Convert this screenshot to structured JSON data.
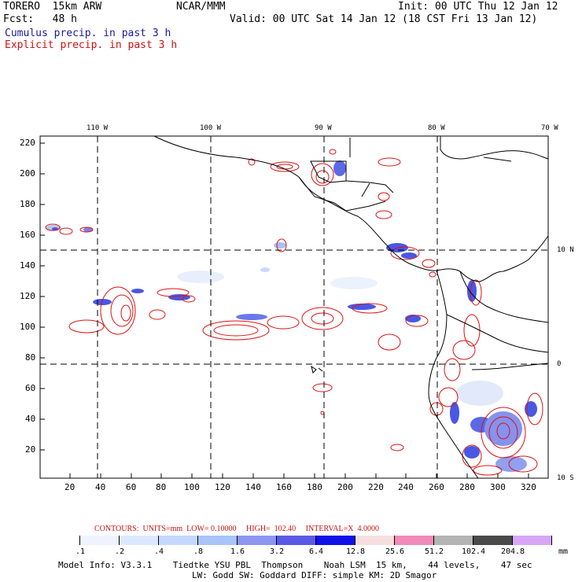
{
  "header": {
    "model": "TORERO  15km ARW",
    "org": "NCAR/MMM",
    "init": "Init: 00 UTC Thu 12 Jan 12",
    "fcst": "Fcst:   48 h",
    "valid": "Valid: 00 UTC Sat 14 Jan 12 (18 CST Fri 13 Jan 12)",
    "legend_cumulus": "Cumulus precip. in past 3 h",
    "legend_explicit": "Explicit precip. in past 3 h"
  },
  "map": {
    "top_labels": [
      "110 W",
      "100 W",
      "90 W",
      "80 W",
      "70 W"
    ],
    "right_labels": [
      "10 N",
      "0",
      "10 S"
    ],
    "y_ticks": [
      "220",
      "200",
      "180",
      "160",
      "140",
      "120",
      "100",
      "80",
      "60",
      "40",
      "20"
    ],
    "x_ticks": [
      "20",
      "40",
      "60",
      "80",
      "100",
      "120",
      "140",
      "160",
      "180",
      "200",
      "220",
      "240",
      "260",
      "280",
      "300",
      "320"
    ],
    "colors": {
      "explicit": "#e01010",
      "cumulus": "#2030e0",
      "coast": "#000000"
    }
  },
  "contours": {
    "text": "CONTOURS:  UNITS=mm  LOW= 0.10000     HIGH=  102.40     INTERVAL=X  4.0000"
  },
  "colorbar": {
    "labels": [
      ".1",
      ".2",
      ".4",
      ".8",
      "1.6",
      "3.2",
      "6.4",
      "12.8",
      "25.6",
      "51.2",
      "102.4",
      "204.8"
    ],
    "units": "mm",
    "colors": [
      "#ffffff",
      "#eef3ff",
      "#dce8ff",
      "#c4d8ff",
      "#a8c4f8",
      "#8c96f0",
      "#5a5ae6",
      "#1010e8",
      "#f6dede",
      "#f08ab8",
      "#b4b4b4",
      "#4a4a4a",
      "#d8a6f6"
    ]
  },
  "footer": {
    "line1": "Model Info: V3.3.1    Tiedtke YSU PBL  Thompson    Noah LSM  15 km,    44 levels,    47 sec",
    "line2": "LW: Godd SW: Goddard DIFF: simple KM: 2D Smagor"
  }
}
